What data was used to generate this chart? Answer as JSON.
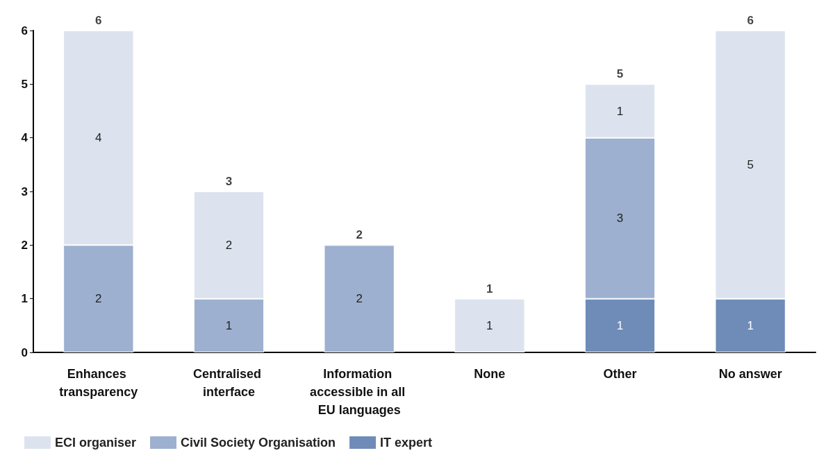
{
  "chart_data": {
    "type": "bar",
    "stacked": true,
    "categories": [
      "Enhances transparency",
      "Centralised interface",
      "Information accessible in all EU languages",
      "None",
      "Other",
      "No answer"
    ],
    "series": [
      {
        "name": "IT expert",
        "color": "#6f8cb8",
        "values": [
          null,
          null,
          null,
          null,
          1,
          1
        ]
      },
      {
        "name": "Civil Society Organisation",
        "color": "#9db0cf",
        "values": [
          2,
          1,
          2,
          null,
          3,
          null
        ]
      },
      {
        "name": "ECI organiser",
        "color": "#dce3ee",
        "values": [
          4,
          2,
          null,
          1,
          1,
          5
        ]
      }
    ],
    "ylim": [
      0,
      6
    ],
    "yticks": [
      0,
      1,
      2,
      3,
      4,
      5,
      6
    ],
    "grid": false,
    "legend": "bottom left",
    "data_labels": true,
    "totals": [
      "6",
      "3",
      "2",
      "1",
      "5",
      "6"
    ]
  }
}
